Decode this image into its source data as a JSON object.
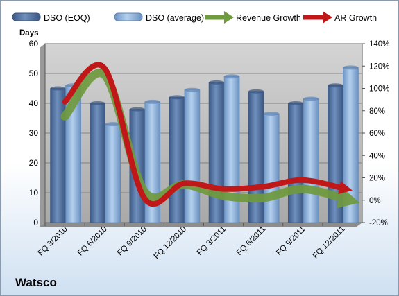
{
  "company": "Watsco",
  "legend": {
    "items": [
      {
        "label": "DSO (EOQ)",
        "kind": "bar-eoq"
      },
      {
        "label": "DSO (average)",
        "kind": "bar-avg"
      },
      {
        "label": "Revenue Growth",
        "kind": "arrow-green"
      },
      {
        "label": "AR Growth",
        "kind": "arrow-red"
      }
    ]
  },
  "colors": {
    "bar_eoq": "#4f6f9f",
    "bar_avg": "#8fb3dd",
    "plot_bg": "#c0c0c0",
    "revenue_growth": "#6f9a3e",
    "ar_growth": "#c01818"
  },
  "chart_data": {
    "type": "bar",
    "categories": [
      "FQ 3/2010",
      "FQ 6/2010",
      "FQ 9/2010",
      "FQ 12/2010",
      "FQ 3/2011",
      "FQ 6/2011",
      "FQ 9/2011",
      "FQ 12/2011"
    ],
    "ylabel": "Days",
    "ylim": [
      0,
      60
    ],
    "yticks": [
      "0",
      "10",
      "20",
      "30",
      "40",
      "50",
      "60"
    ],
    "y2lim": [
      -20,
      140
    ],
    "y2ticks": [
      "-20%",
      "0%",
      "20%",
      "40%",
      "60%",
      "80%",
      "100%",
      "120%",
      "140%"
    ],
    "series": [
      {
        "name": "DSO (EOQ)",
        "type": "bar",
        "values": [
          45,
          40,
          38,
          42,
          47,
          44,
          40,
          46
        ]
      },
      {
        "name": "DSO (average)",
        "type": "bar",
        "values": [
          46,
          33,
          40.5,
          44.5,
          49,
          36.5,
          41.5,
          52
        ]
      },
      {
        "name": "Revenue Growth",
        "type": "line",
        "axis": "secondary",
        "values": [
          75,
          112,
          8,
          14,
          4,
          2,
          10,
          0
        ]
      },
      {
        "name": "AR Growth",
        "type": "line",
        "axis": "secondary",
        "values": [
          88,
          118,
          2,
          15,
          10,
          12,
          18,
          10
        ]
      }
    ],
    "grid": true,
    "legend_position": "top"
  }
}
